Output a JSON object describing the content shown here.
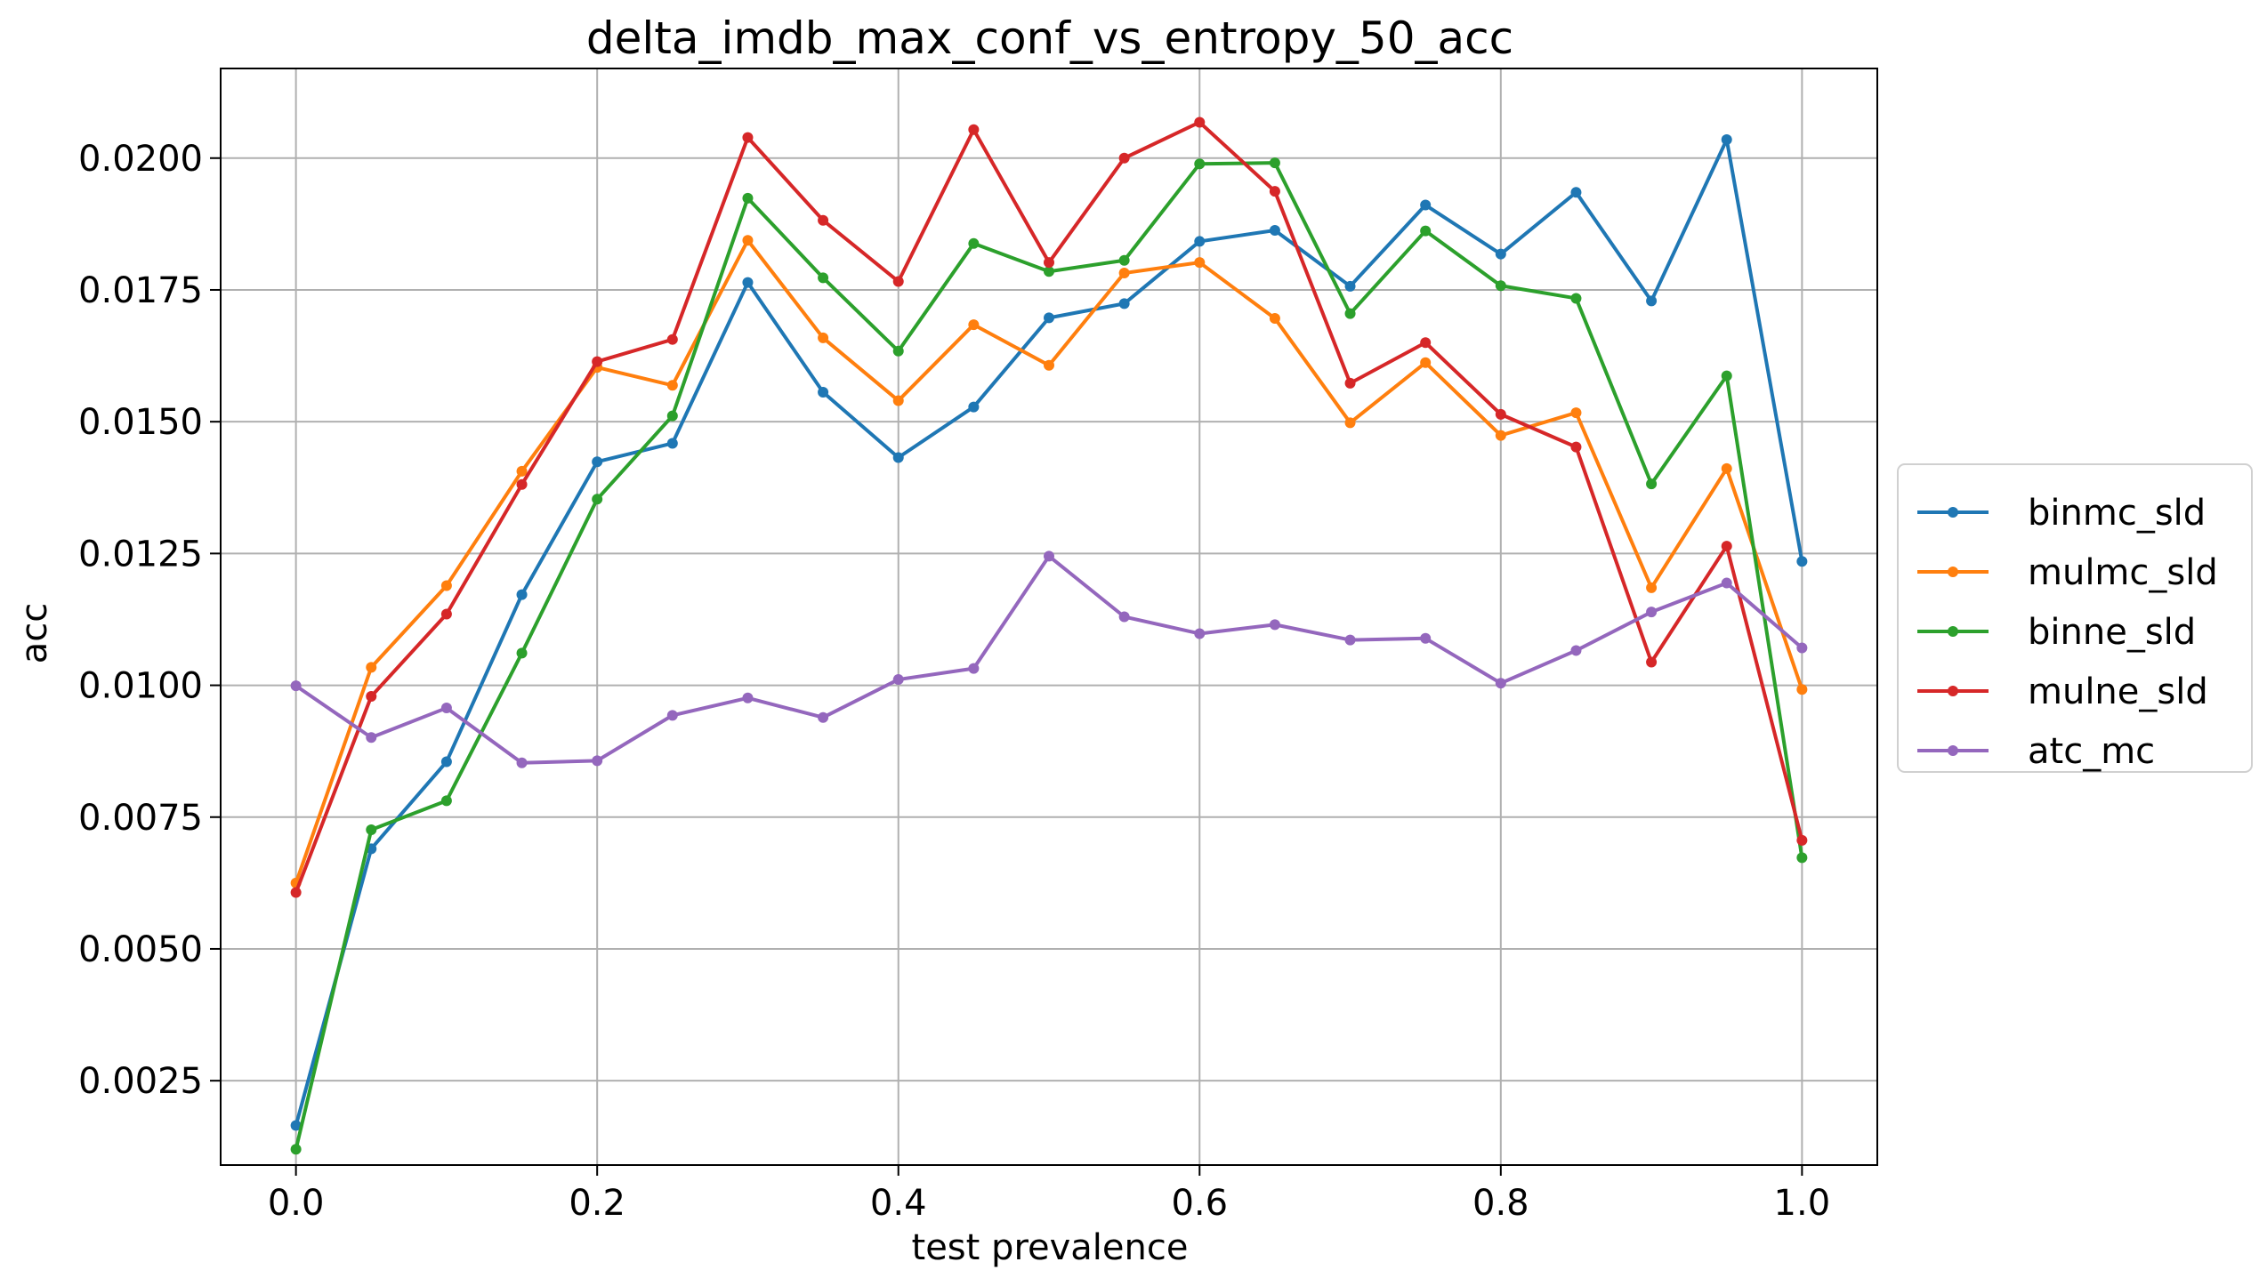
{
  "chart_data": {
    "type": "line",
    "title": "delta_imdb_max_conf_vs_entropy_50_acc",
    "xlabel": "test prevalence",
    "ylabel": "acc",
    "xlim": [
      -0.05,
      1.05
    ],
    "ylim": [
      0.0009,
      0.0217
    ],
    "xticks": [
      0.0,
      0.2,
      0.4,
      0.6,
      0.8,
      1.0
    ],
    "xtick_labels": [
      "0.0",
      "0.2",
      "0.4",
      "0.6",
      "0.8",
      "1.0"
    ],
    "yticks": [
      0.0025,
      0.005,
      0.0075,
      0.01,
      0.0125,
      0.015,
      0.0175,
      0.02
    ],
    "ytick_labels": [
      "0.0025",
      "0.0050",
      "0.0075",
      "0.0100",
      "0.0125",
      "0.0150",
      "0.0175",
      "0.0200"
    ],
    "grid": true,
    "legend_position": "right, outside plot area",
    "x": [
      0.0,
      0.05,
      0.1,
      0.15,
      0.2,
      0.25,
      0.3,
      0.35,
      0.4,
      0.45,
      0.5,
      0.55,
      0.6,
      0.65,
      0.7,
      0.75,
      0.8,
      0.85,
      0.9,
      0.95,
      1.0
    ],
    "series": [
      {
        "name": "binmc_sld",
        "color": "#1f77b4",
        "values": [
          0.00165,
          0.0069,
          0.00855,
          0.01172,
          0.01424,
          0.01459,
          0.01764,
          0.01556,
          0.01432,
          0.01528,
          0.01697,
          0.01724,
          0.01842,
          0.01863,
          0.01757,
          0.01911,
          0.01818,
          0.01935,
          0.01729,
          0.02035,
          0.01235
        ]
      },
      {
        "name": "mulmc_sld",
        "color": "#ff7f0e",
        "values": [
          0.00625,
          0.01034,
          0.01189,
          0.01406,
          0.01603,
          0.01569,
          0.01844,
          0.01659,
          0.0154,
          0.01684,
          0.01607,
          0.01782,
          0.01802,
          0.01696,
          0.01498,
          0.01612,
          0.01474,
          0.01517,
          0.01185,
          0.01411,
          0.00992
        ]
      },
      {
        "name": "binne_sld",
        "color": "#2ca02c",
        "values": [
          0.0012,
          0.00726,
          0.00781,
          0.01061,
          0.01353,
          0.01511,
          0.01924,
          0.01773,
          0.01634,
          0.01838,
          0.01785,
          0.01806,
          0.01989,
          0.01991,
          0.01705,
          0.01862,
          0.01758,
          0.01734,
          0.01382,
          0.01587,
          0.00673
        ]
      },
      {
        "name": "mulne_sld",
        "color": "#d62728",
        "values": [
          0.00607,
          0.00979,
          0.01135,
          0.01381,
          0.01614,
          0.01656,
          0.02039,
          0.01882,
          0.01766,
          0.02054,
          0.01802,
          0.02,
          0.02068,
          0.01937,
          0.01573,
          0.0165,
          0.01514,
          0.01452,
          0.01044,
          0.01264,
          0.00706
        ]
      },
      {
        "name": "atc_mc",
        "color": "#9467bd",
        "values": [
          0.00999,
          0.00901,
          0.00957,
          0.00853,
          0.00857,
          0.00943,
          0.00976,
          0.00939,
          0.01011,
          0.01032,
          0.01245,
          0.0113,
          0.01098,
          0.01115,
          0.01086,
          0.01089,
          0.01004,
          0.01066,
          0.01139,
          0.01194,
          0.01071
        ]
      }
    ]
  }
}
